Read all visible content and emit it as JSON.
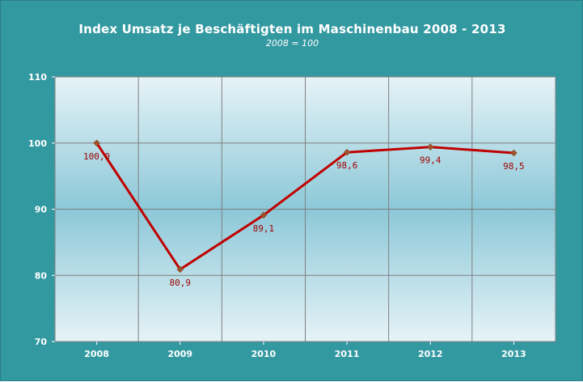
{
  "chart_data": {
    "type": "line",
    "title": "Index Umsatz je Beschäftigten im Maschinenbau 2008 - 2013",
    "subtitle": "2008 = 100",
    "categories": [
      "2008",
      "2009",
      "2010",
      "2011",
      "2012",
      "2013"
    ],
    "series": [
      {
        "values": [
          100.0,
          80.9,
          89.1,
          98.6,
          99.4,
          98.5
        ],
        "labels": [
          "100,0",
          "80,9",
          "89,1",
          "98,6",
          "99,4",
          "98,5"
        ],
        "color": "#c00000",
        "marker_color": "#a0522d"
      }
    ],
    "ylim": [
      70,
      110
    ],
    "yticks": [
      "70",
      "80",
      "90",
      "100",
      "110"
    ],
    "grid": true,
    "colors": {
      "background": "#3399a1",
      "plot_gradient_top": "#e6f3f7",
      "plot_gradient_mid": "#8cc8d8",
      "plot_gradient_bottom": "#e6f3f7",
      "gridline": "#7f7f7f",
      "text": "#ffffff",
      "data_label": "#a00000"
    }
  }
}
